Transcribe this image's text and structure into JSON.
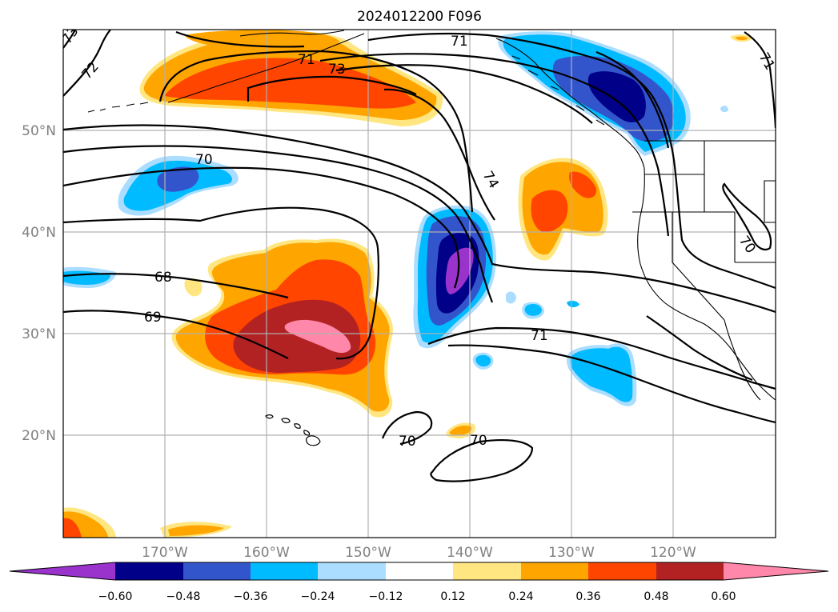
{
  "title": "2024012200 F096",
  "lon_ticks": [
    "170°W",
    "160°W",
    "150°W",
    "140°W",
    "130°W",
    "120°W"
  ],
  "lat_ticks": [
    "50°N",
    "40°N",
    "30°N",
    "20°N"
  ],
  "contour_labels": [
    "73",
    "72",
    "71",
    "73",
    "71",
    "70",
    "74",
    "70",
    "68",
    "69",
    "71",
    "70",
    "70",
    "71"
  ],
  "colorbar": {
    "ticks": [
      "−0.60",
      "−0.48",
      "−0.36",
      "−0.24",
      "−0.12",
      "0.12",
      "0.24",
      "0.36",
      "0.48",
      "0.60"
    ],
    "colors": [
      "#9933cc",
      "#000088",
      "#3355cc",
      "#00bbff",
      "#aaddff",
      "#ffffff",
      "#ffe680",
      "#ffa500",
      "#ff4500",
      "#b22222",
      "#ff88aa"
    ]
  },
  "fill_colors": {
    "neg_light": "#aaddff",
    "neg_1": "#00bbff",
    "neg_2": "#3355cc",
    "neg_3": "#000088",
    "neg_4": "#9933cc",
    "pos_light": "#ffe680",
    "pos_1": "#ffa500",
    "pos_2": "#ff4500",
    "pos_3": "#b22222",
    "pos_4": "#ff88aa"
  }
}
